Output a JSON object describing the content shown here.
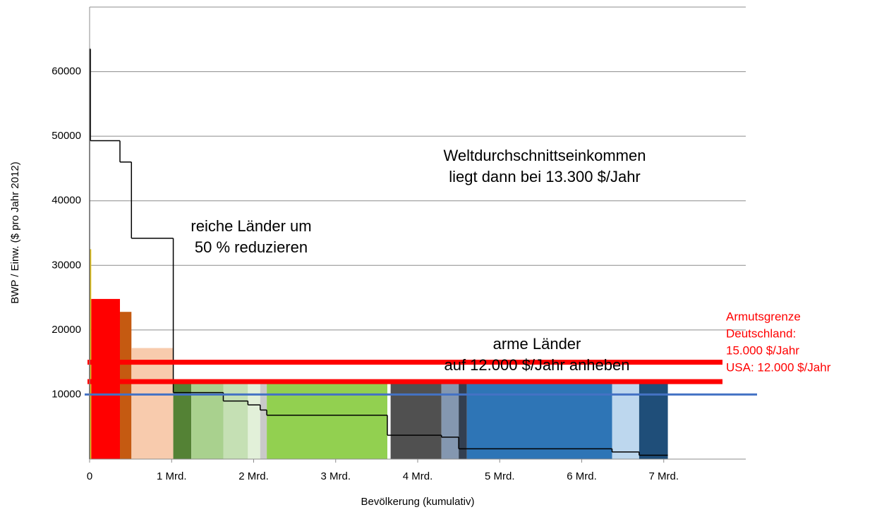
{
  "chart_data": {
    "type": "variable-width-bar",
    "xlabel": "Bevölkerung (kumulativ)",
    "ylabel": "BWP / Einw. ($ pro Jahr 2012)",
    "xlim": [
      0,
      8
    ],
    "ylim": [
      0,
      70000
    ],
    "xticks": [
      {
        "value": 0,
        "label": "0"
      },
      {
        "value": 1,
        "label": "1 Mrd."
      },
      {
        "value": 2,
        "label": "2 Mrd."
      },
      {
        "value": 3,
        "label": "3 Mrd."
      },
      {
        "value": 4,
        "label": "4 Mrd."
      },
      {
        "value": 5,
        "label": "5 Mrd."
      },
      {
        "value": 6,
        "label": "6 Mrd."
      },
      {
        "value": 7,
        "label": "7 Mrd."
      }
    ],
    "yticks": [
      10000,
      20000,
      30000,
      40000,
      50000,
      60000
    ],
    "grid": true,
    "bars": [
      {
        "x0": 0,
        "x1": 0.02,
        "value": 32500,
        "color": "#e6c619"
      },
      {
        "x0": 0.02,
        "x1": 0.37,
        "value": 24800,
        "color": "#ff0000"
      },
      {
        "x0": 0.37,
        "x1": 0.51,
        "value": 22800,
        "color": "#c55a11"
      },
      {
        "x0": 0.51,
        "x1": 1.02,
        "value": 17200,
        "color": "#f8cbad"
      },
      {
        "x0": 1.02,
        "x1": 1.24,
        "value": 12000,
        "color": "#548235"
      },
      {
        "x0": 1.24,
        "x1": 1.63,
        "value": 12000,
        "color": "#a9d18e"
      },
      {
        "x0": 1.63,
        "x1": 1.93,
        "value": 12000,
        "color": "#c5e0b4"
      },
      {
        "x0": 1.93,
        "x1": 2.08,
        "value": 12000,
        "color": "#e2f0d9"
      },
      {
        "x0": 2.08,
        "x1": 2.16,
        "value": 12000,
        "color": "#c9c9c9"
      },
      {
        "x0": 2.16,
        "x1": 3.63,
        "value": 12000,
        "color": "#92d050"
      },
      {
        "x0": 3.67,
        "x1": 4.29,
        "value": 12000,
        "color": "#505050"
      },
      {
        "x0": 4.29,
        "x1": 4.5,
        "value": 12000,
        "color": "#8497b0"
      },
      {
        "x0": 4.5,
        "x1": 4.6,
        "value": 12000,
        "color": "#333f50"
      },
      {
        "x0": 4.6,
        "x1": 6.37,
        "value": 12000,
        "color": "#2e75b6"
      },
      {
        "x0": 6.37,
        "x1": 6.7,
        "value": 12000,
        "color": "#bdd7ee"
      },
      {
        "x0": 6.7,
        "x1": 7.05,
        "value": 12000,
        "color": "#1f4e79"
      }
    ],
    "step_line": {
      "color": "#000000",
      "edges": [
        0,
        0.01,
        0.37,
        0.51,
        1.02,
        1.63,
        1.93,
        2.08,
        2.16,
        3.63,
        4.29,
        4.5,
        6.37,
        6.7,
        7.05
      ],
      "values": [
        63500,
        49300,
        46000,
        34200,
        10300,
        9000,
        8400,
        7600,
        6800,
        3700,
        3400,
        1600,
        1100,
        600
      ]
    },
    "reference_lines": [
      {
        "value": 15000,
        "color": "#ff0000"
      },
      {
        "value": 12000,
        "color": "#ff0000"
      },
      {
        "value": 10000,
        "color": "#4472c4"
      }
    ],
    "annotations": [
      {
        "lines": [
          "Weltdurchschnittseinkommen",
          "liegt dann bei 13.300 $/Jahr"
        ]
      },
      {
        "lines": [
          "reiche Länder um",
          "50 % reduzieren"
        ]
      },
      {
        "lines": [
          "arme Länder",
          "auf 12.000 $/Jahr anheben"
        ]
      },
      {
        "lines": [
          "Armutsgrenze",
          "Deutschland:",
          "15.000 $/Jahr",
          "USA: 12.000 $/Jahr"
        ],
        "color": "#ff0000"
      }
    ]
  }
}
